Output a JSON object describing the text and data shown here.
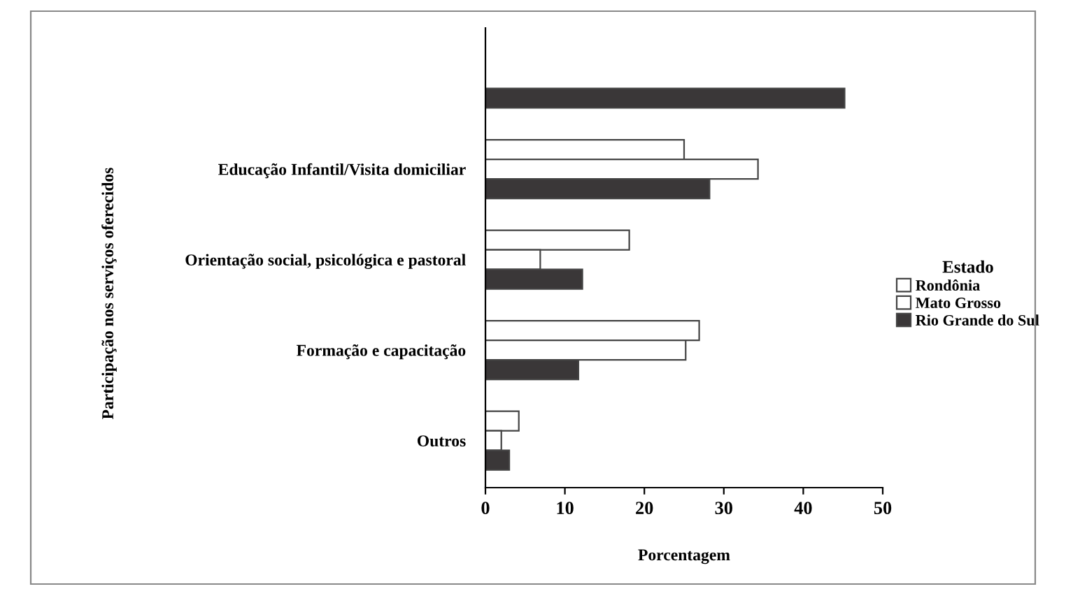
{
  "chart_data": {
    "type": "bar",
    "orientation": "horizontal",
    "categories": [
      null,
      "Educação Infantil/Visita domiciliar",
      "Orientação social, psicológica e pastoral",
      "Formação e capacitação",
      "Outros"
    ],
    "series": [
      {
        "name": "Rondônia",
        "color": "#ffffff",
        "values": [
          null,
          25.0,
          18.1,
          26.9,
          4.2
        ]
      },
      {
        "name": "Mato Grosso",
        "color": "#ffffff",
        "values": [
          null,
          34.3,
          6.9,
          25.2,
          2.0
        ]
      },
      {
        "name": "Rio Grande do Sul",
        "color": "#3a3738",
        "values": [
          45.2,
          28.2,
          12.2,
          11.7,
          3.0
        ]
      }
    ],
    "xlabel": "Porcentagem",
    "ylabel": "Participação nos serviços oferecidos",
    "legend_title": "Estado",
    "legend": "right",
    "xlim": [
      0,
      50
    ],
    "xticks": [
      0,
      10,
      20,
      30,
      40,
      50
    ],
    "grid": false
  }
}
